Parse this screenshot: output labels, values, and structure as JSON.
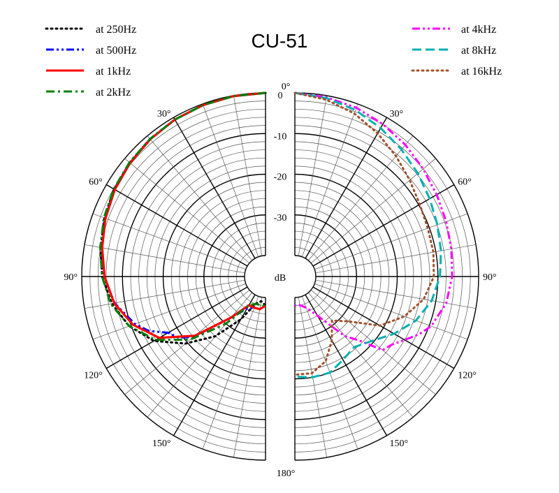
{
  "chart_data": {
    "type": "polar",
    "title": "CU-51",
    "unit_label": "dB",
    "r_ticks": [
      "0",
      "-10",
      "-20",
      "-30"
    ],
    "r_range": [
      -40,
      0
    ],
    "angle_ticks": [
      "0°",
      "30°",
      "60°",
      "90°",
      "120°",
      "150°",
      "180°"
    ],
    "angle_tick_values": [
      0,
      30,
      60,
      90,
      120,
      150,
      180
    ],
    "grid": true,
    "legend_left": [
      "at 250Hz",
      "at 500Hz",
      "at 1kHz",
      "at 2kHz"
    ],
    "legend_right": [
      "at 4kHz",
      "at 8kHz",
      "at 16kHz"
    ],
    "series": [
      {
        "name": "at 250Hz",
        "side": "left",
        "color": "#000000",
        "dash": "dot",
        "angles": [
          0,
          10,
          20,
          30,
          40,
          50,
          60,
          70,
          80,
          90,
          100,
          110,
          120,
          130,
          140,
          150,
          160,
          170,
          180
        ],
        "values": [
          0,
          -0.1,
          -0.3,
          -0.6,
          -1.0,
          -1.6,
          -2.2,
          -3.0,
          -4.0,
          -5.0,
          -6.8,
          -9.5,
          -13.5,
          -19.5,
          -26,
          -33,
          -38,
          -39,
          -38
        ]
      },
      {
        "name": "at 500Hz",
        "side": "left",
        "color": "#0000ff",
        "dash": "dashdotdot",
        "angles": [
          0,
          10,
          20,
          30,
          40,
          50,
          60,
          70,
          80,
          90,
          100,
          110,
          115,
          120,
          125,
          130,
          140,
          150,
          160,
          170,
          180
        ],
        "values": [
          0,
          -0.1,
          -0.3,
          -0.6,
          -1.0,
          -1.6,
          -2.3,
          -3.2,
          -4.3,
          -5.5,
          -7.5,
          -11,
          -13.5,
          -17.5,
          -19,
          -22,
          -32,
          -36,
          -37,
          -37,
          -38
        ]
      },
      {
        "name": "at 1kHz",
        "side": "left",
        "color": "#ff0000",
        "dash": "solid",
        "angles": [
          0,
          10,
          20,
          30,
          40,
          50,
          60,
          70,
          80,
          90,
          100,
          110,
          120,
          130,
          140,
          150,
          160,
          170,
          180
        ],
        "values": [
          0,
          -0.1,
          -0.3,
          -0.6,
          -1.1,
          -1.7,
          -2.4,
          -3.3,
          -4.4,
          -5.6,
          -7.4,
          -10.5,
          -15,
          -22.5,
          -32,
          -37,
          -37,
          -37,
          -38
        ]
      },
      {
        "name": "at 2kHz",
        "side": "left",
        "color": "#008000",
        "dash": "dashdot",
        "angles": [
          0,
          10,
          20,
          30,
          40,
          50,
          60,
          70,
          80,
          90,
          100,
          110,
          120,
          130,
          140,
          150,
          160,
          170,
          180
        ],
        "values": [
          0,
          -0.1,
          -0.3,
          -0.6,
          -1.0,
          -1.5,
          -2.1,
          -2.9,
          -3.9,
          -5.0,
          -6.5,
          -9.5,
          -14,
          -21,
          -30,
          -37,
          -38,
          -38,
          -38
        ]
      },
      {
        "name": "at 4kHz",
        "side": "right",
        "color": "#ff00ff",
        "dash": "dashdotdot",
        "angles": [
          0,
          10,
          20,
          30,
          40,
          50,
          60,
          70,
          80,
          90,
          100,
          110,
          115,
          120,
          125,
          130,
          135,
          140,
          150,
          160,
          170,
          180
        ],
        "values": [
          0,
          -0.4,
          -1.0,
          -1.9,
          -2.9,
          -4.0,
          -4.9,
          -5.6,
          -6.1,
          -6.5,
          -7.4,
          -9.5,
          -11.5,
          -14,
          -16,
          -17,
          -23,
          -26,
          -34,
          -37,
          -38,
          -38
        ]
      },
      {
        "name": "at 8kHz",
        "side": "right",
        "color": "#00b0b0",
        "dash": "dash",
        "angles": [
          0,
          10,
          20,
          30,
          40,
          50,
          60,
          70,
          80,
          90,
          100,
          110,
          120,
          130,
          140,
          150,
          160,
          170,
          180
        ],
        "values": [
          0,
          -0.6,
          -1.6,
          -3.0,
          -4.4,
          -5.7,
          -6.9,
          -7.9,
          -8.7,
          -9.5,
          -11,
          -13.5,
          -17,
          -20.5,
          -22.5,
          -21.5,
          -20,
          -20,
          -20.5
        ]
      },
      {
        "name": "at 16kHz",
        "side": "right",
        "color": "#a0522d",
        "dash": "dot",
        "angles": [
          0,
          10,
          20,
          30,
          40,
          50,
          60,
          70,
          80,
          90,
          100,
          110,
          120,
          130,
          140,
          150,
          160,
          170,
          180
        ],
        "values": [
          0,
          -1.0,
          -2.5,
          -4.5,
          -6.5,
          -8.3,
          -9.7,
          -10.4,
          -10.6,
          -11,
          -13,
          -16.5,
          -21,
          -28,
          -31,
          -27,
          -23,
          -21,
          -21
        ]
      }
    ]
  }
}
